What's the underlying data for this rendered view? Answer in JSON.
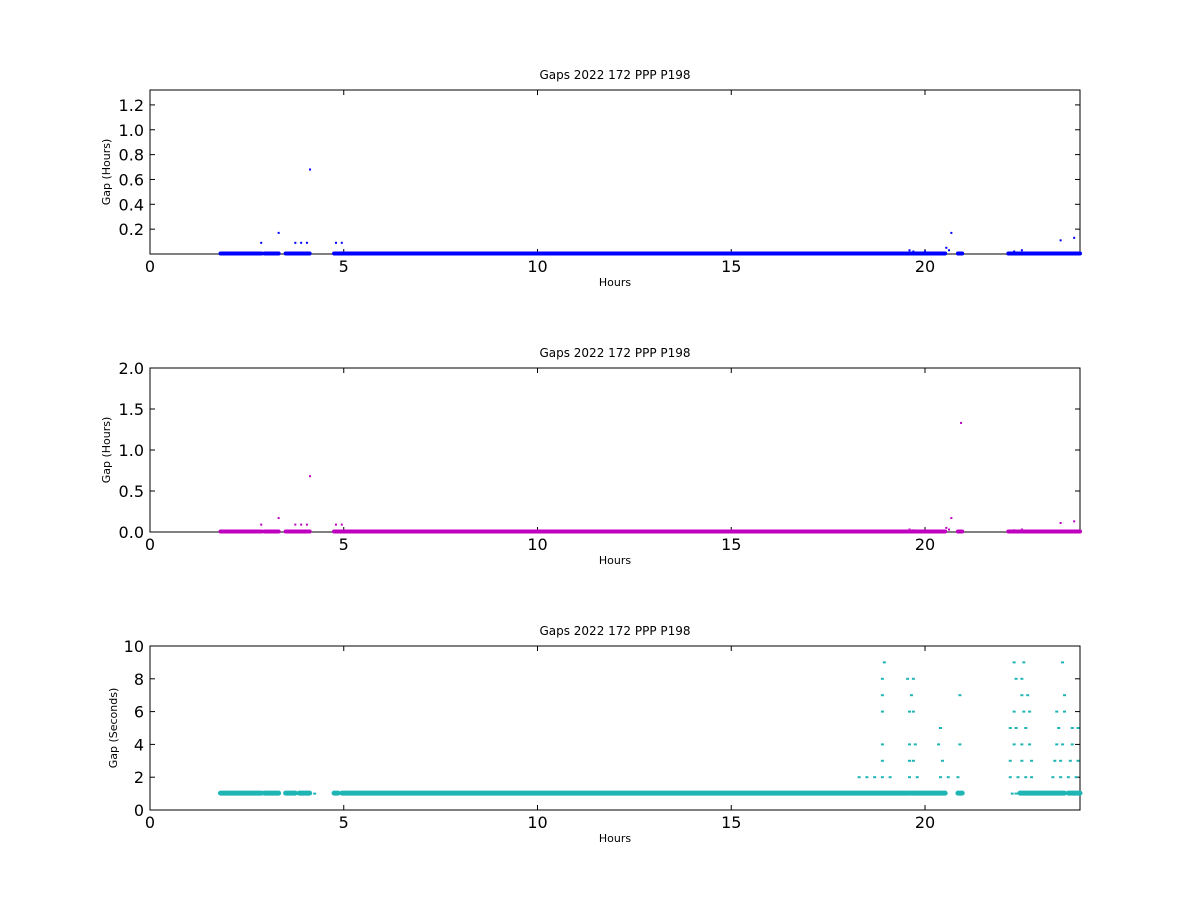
{
  "chart_data": [
    {
      "type": "scatter",
      "title": "Gaps 2022 172 PPP  P198",
      "xlabel": "Hours",
      "ylabel": "Gap (Hours)",
      "xlim": [
        0,
        24
      ],
      "ylim": [
        0,
        1.32
      ],
      "xticks": [
        0,
        5,
        10,
        15,
        20
      ],
      "yticks": [
        0.2,
        0.4,
        0.6,
        0.8,
        1.0,
        1.2
      ],
      "ytick_labels": [
        "0.2",
        "0.4",
        "0.6",
        "0.8",
        "1.0",
        "1.2"
      ],
      "grid": false,
      "color": "#0000ff",
      "baseline_value": 0.0003,
      "baseline_segments": [
        [
          1.82,
          2.88
        ],
        [
          2.95,
          3.32
        ],
        [
          3.5,
          4.12
        ],
        [
          4.75,
          20.52
        ],
        [
          20.85,
          20.96
        ],
        [
          22.15,
          24
        ]
      ],
      "points": [
        {
          "x": 2.87,
          "y": 0.09
        },
        {
          "x": 3.32,
          "y": 0.17
        },
        {
          "x": 3.75,
          "y": 0.09
        },
        {
          "x": 3.9,
          "y": 0.09
        },
        {
          "x": 4.05,
          "y": 0.09
        },
        {
          "x": 4.13,
          "y": 0.68
        },
        {
          "x": 4.8,
          "y": 0.09
        },
        {
          "x": 4.95,
          "y": 0.09
        },
        {
          "x": 19.6,
          "y": 0.03
        },
        {
          "x": 19.7,
          "y": 0.02
        },
        {
          "x": 20.0,
          "y": 0.02
        },
        {
          "x": 20.55,
          "y": 0.05
        },
        {
          "x": 20.62,
          "y": 0.03
        },
        {
          "x": 20.68,
          "y": 0.17
        },
        {
          "x": 22.3,
          "y": 0.02
        },
        {
          "x": 22.5,
          "y": 0.03
        },
        {
          "x": 23.5,
          "y": 0.11
        },
        {
          "x": 23.85,
          "y": 0.13
        },
        {
          "x": 23.95,
          "y": 0.01
        }
      ]
    },
    {
      "type": "scatter",
      "title": "Gaps 2022 172 PPP  P198",
      "xlabel": "Hours",
      "ylabel": "Gap (Hours)",
      "xlim": [
        0,
        24
      ],
      "ylim": [
        0,
        2.0
      ],
      "xticks": [
        0,
        5,
        10,
        15,
        20
      ],
      "yticks": [
        0.0,
        0.5,
        1.0,
        1.5,
        2.0
      ],
      "ytick_labels": [
        "0.0",
        "0.5",
        "1.0",
        "1.5",
        "2.0"
      ],
      "grid": false,
      "color": "#bf00bf",
      "baseline_value": 0.0003,
      "baseline_segments": [
        [
          1.82,
          2.88
        ],
        [
          2.95,
          3.32
        ],
        [
          3.5,
          4.12
        ],
        [
          4.75,
          20.52
        ],
        [
          20.85,
          20.96
        ],
        [
          22.15,
          24
        ]
      ],
      "points": [
        {
          "x": 2.87,
          "y": 0.09
        },
        {
          "x": 3.32,
          "y": 0.17
        },
        {
          "x": 3.75,
          "y": 0.09
        },
        {
          "x": 3.9,
          "y": 0.09
        },
        {
          "x": 4.05,
          "y": 0.09
        },
        {
          "x": 4.13,
          "y": 0.68
        },
        {
          "x": 4.8,
          "y": 0.09
        },
        {
          "x": 4.95,
          "y": 0.09
        },
        {
          "x": 19.6,
          "y": 0.03
        },
        {
          "x": 19.7,
          "y": 0.02
        },
        {
          "x": 20.0,
          "y": 0.02
        },
        {
          "x": 20.55,
          "y": 0.05
        },
        {
          "x": 20.62,
          "y": 0.03
        },
        {
          "x": 20.68,
          "y": 0.17
        },
        {
          "x": 20.93,
          "y": 1.33
        },
        {
          "x": 22.3,
          "y": 0.02
        },
        {
          "x": 22.5,
          "y": 0.03
        },
        {
          "x": 23.5,
          "y": 0.11
        },
        {
          "x": 23.85,
          "y": 0.13
        },
        {
          "x": 23.95,
          "y": 0.01
        }
      ]
    },
    {
      "type": "scatter",
      "title": "Gaps 2022 172 PPP  P198",
      "xlabel": "Hours",
      "ylabel": "Gap (Seconds)",
      "xlim": [
        0,
        24
      ],
      "ylim": [
        0,
        10
      ],
      "xticks": [
        0,
        5,
        10,
        15,
        20
      ],
      "yticks": [
        0,
        2,
        4,
        6,
        8,
        10
      ],
      "ytick_labels": [
        "0",
        "2",
        "4",
        "6",
        "8",
        "10"
      ],
      "grid": false,
      "color": "#1fb5b5",
      "baseline_value": 1,
      "baseline_segments": [
        [
          1.82,
          2.88
        ],
        [
          2.95,
          3.32
        ],
        [
          3.5,
          3.75
        ],
        [
          3.85,
          4.12
        ],
        [
          4.75,
          4.85
        ],
        [
          4.95,
          19.6
        ],
        [
          19.65,
          20.52
        ],
        [
          20.85,
          20.96
        ],
        [
          22.45,
          23.6
        ],
        [
          23.7,
          24
        ]
      ],
      "points": [
        {
          "x": 4.25,
          "y": 1
        },
        {
          "x": 22.25,
          "y": 1
        },
        {
          "x": 22.35,
          "y": 1
        },
        {
          "x": 18.3,
          "y": 2
        },
        {
          "x": 18.5,
          "y": 2
        },
        {
          "x": 18.7,
          "y": 2
        },
        {
          "x": 18.9,
          "y": 2
        },
        {
          "x": 19.1,
          "y": 2
        },
        {
          "x": 19.6,
          "y": 2
        },
        {
          "x": 19.8,
          "y": 2
        },
        {
          "x": 20.4,
          "y": 2
        },
        {
          "x": 20.6,
          "y": 2
        },
        {
          "x": 20.85,
          "y": 2
        },
        {
          "x": 22.2,
          "y": 2
        },
        {
          "x": 22.4,
          "y": 2
        },
        {
          "x": 22.6,
          "y": 2
        },
        {
          "x": 22.75,
          "y": 2
        },
        {
          "x": 23.3,
          "y": 2
        },
        {
          "x": 23.5,
          "y": 2
        },
        {
          "x": 23.7,
          "y": 2
        },
        {
          "x": 23.9,
          "y": 2
        },
        {
          "x": 18.9,
          "y": 3
        },
        {
          "x": 19.6,
          "y": 3
        },
        {
          "x": 19.7,
          "y": 3
        },
        {
          "x": 20.45,
          "y": 3
        },
        {
          "x": 22.2,
          "y": 3
        },
        {
          "x": 22.5,
          "y": 3
        },
        {
          "x": 22.75,
          "y": 3
        },
        {
          "x": 23.35,
          "y": 3
        },
        {
          "x": 23.5,
          "y": 3
        },
        {
          "x": 23.75,
          "y": 3
        },
        {
          "x": 23.95,
          "y": 3
        },
        {
          "x": 18.9,
          "y": 4
        },
        {
          "x": 19.6,
          "y": 4
        },
        {
          "x": 19.75,
          "y": 4
        },
        {
          "x": 20.35,
          "y": 4
        },
        {
          "x": 20.9,
          "y": 4
        },
        {
          "x": 22.3,
          "y": 4
        },
        {
          "x": 22.5,
          "y": 4
        },
        {
          "x": 22.7,
          "y": 4
        },
        {
          "x": 23.4,
          "y": 4
        },
        {
          "x": 23.55,
          "y": 4
        },
        {
          "x": 23.8,
          "y": 4
        },
        {
          "x": 20.4,
          "y": 5
        },
        {
          "x": 22.2,
          "y": 5
        },
        {
          "x": 22.35,
          "y": 5
        },
        {
          "x": 22.6,
          "y": 5
        },
        {
          "x": 23.45,
          "y": 5
        },
        {
          "x": 23.8,
          "y": 5
        },
        {
          "x": 23.95,
          "y": 5
        },
        {
          "x": 18.9,
          "y": 6
        },
        {
          "x": 19.6,
          "y": 6
        },
        {
          "x": 19.7,
          "y": 6
        },
        {
          "x": 22.3,
          "y": 6
        },
        {
          "x": 22.55,
          "y": 6
        },
        {
          "x": 22.7,
          "y": 6
        },
        {
          "x": 23.4,
          "y": 6
        },
        {
          "x": 23.6,
          "y": 6
        },
        {
          "x": 18.9,
          "y": 7
        },
        {
          "x": 19.65,
          "y": 7
        },
        {
          "x": 20.9,
          "y": 7
        },
        {
          "x": 22.5,
          "y": 7
        },
        {
          "x": 22.65,
          "y": 7
        },
        {
          "x": 23.6,
          "y": 7
        },
        {
          "x": 18.9,
          "y": 8
        },
        {
          "x": 19.55,
          "y": 8
        },
        {
          "x": 19.7,
          "y": 8
        },
        {
          "x": 22.35,
          "y": 8
        },
        {
          "x": 22.5,
          "y": 8
        },
        {
          "x": 18.95,
          "y": 9
        },
        {
          "x": 22.3,
          "y": 9
        },
        {
          "x": 22.55,
          "y": 9
        },
        {
          "x": 23.55,
          "y": 9
        }
      ]
    }
  ]
}
